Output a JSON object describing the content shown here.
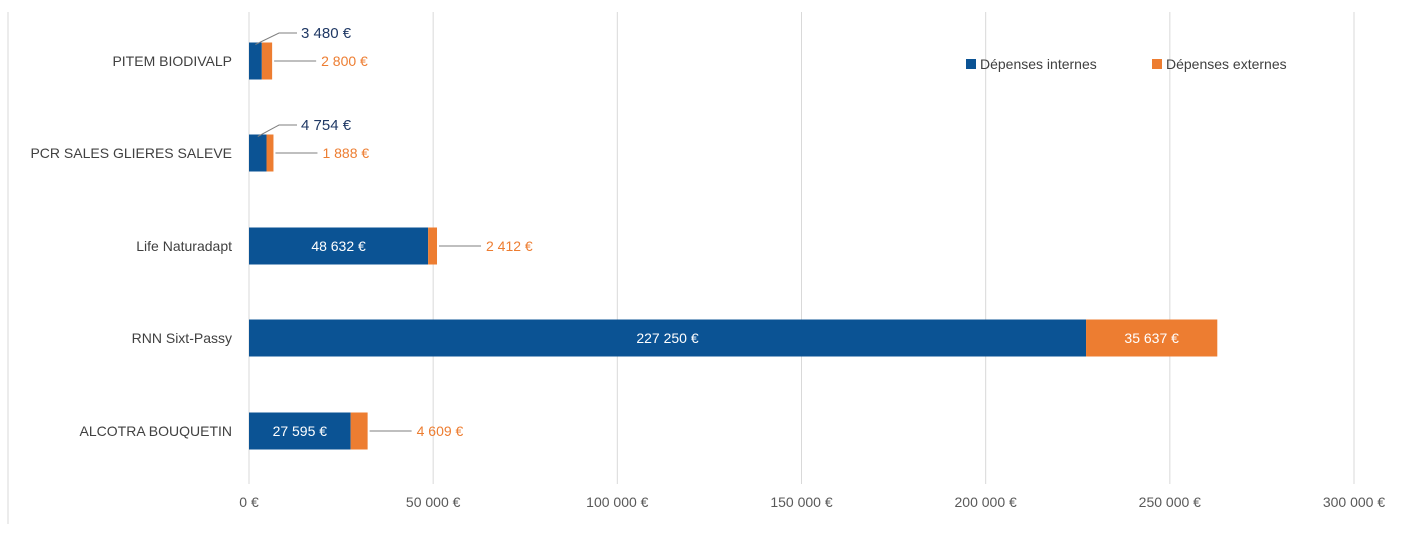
{
  "chart_data": {
    "type": "bar",
    "orientation": "horizontal",
    "stacked": true,
    "categories": [
      "PITEM BIODIVALP",
      "PCR SALES GLIERES SALEVE",
      "Life Naturadapt",
      "RNN Sixt-Passy",
      "ALCOTRA BOUQUETIN"
    ],
    "series": [
      {
        "name": "Dépenses internes",
        "color": "#0B5394",
        "values": [
          3480,
          4754,
          48632,
          227250,
          27595
        ],
        "labels": [
          "3 480 €",
          "4 754 €",
          "48 632 €",
          "227 250 €",
          "27 595 €"
        ]
      },
      {
        "name": "Dépenses externes",
        "color": "#ED7D31",
        "values": [
          2800,
          1888,
          2412,
          35637,
          4609
        ],
        "labels": [
          "2 800 €",
          "1 888 €",
          "2 412 €",
          "35 637 €",
          "4 609 €"
        ]
      }
    ],
    "xlim": [
      0,
      300000
    ],
    "xticks": [
      0,
      50000,
      100000,
      150000,
      200000,
      250000,
      300000
    ],
    "xtick_labels": [
      "0 €",
      "50 000 €",
      "100 000 €",
      "150 000 €",
      "200 000 €",
      "250 000 €",
      "300 000 €"
    ],
    "grid": "vertical",
    "legend_position": "top-right",
    "title": "",
    "xlabel": "",
    "ylabel": ""
  }
}
